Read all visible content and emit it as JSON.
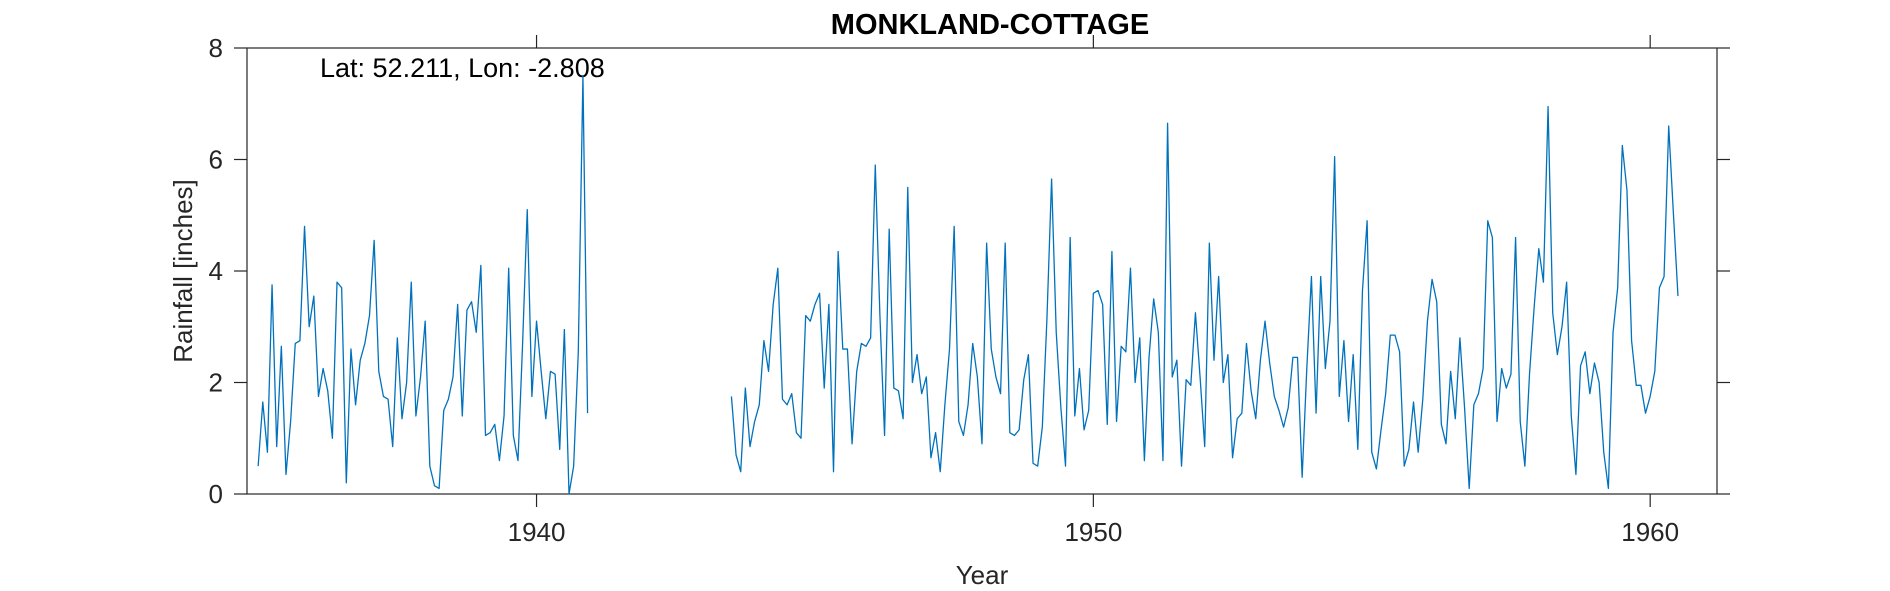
{
  "chart_data": {
    "type": "line",
    "title": "MONKLAND-COTTAGE",
    "xlabel": "Year",
    "ylabel": "Rainfall [inches]",
    "annotation": "Lat: 52.211, Lon: -2.808",
    "xlim": [
      1934.8,
      1961.2
    ],
    "ylim": [
      0,
      8
    ],
    "xticks": [
      1940,
      1950,
      1960
    ],
    "yticks": [
      0,
      2,
      4,
      6,
      8
    ],
    "grid": false,
    "series_color": "#0072BD",
    "series": [
      {
        "segments": [
          {
            "start": 1935.0,
            "step": 0.08333,
            "values": [
              0.5,
              1.65,
              0.75,
              3.75,
              0.85,
              2.65,
              0.35,
              1.3,
              2.7,
              2.75,
              4.8,
              3.0,
              3.55,
              1.75,
              2.25,
              1.85,
              1.0,
              3.8,
              3.7,
              0.2,
              2.6,
              1.6,
              2.4,
              2.7,
              3.2,
              4.55,
              2.2,
              1.75,
              1.7,
              0.85,
              2.8,
              1.35,
              2.0,
              3.8,
              1.4,
              2.1,
              3.1,
              0.5,
              0.15,
              0.1,
              1.5,
              1.7,
              2.1,
              3.4,
              1.4,
              3.3,
              3.45,
              2.9,
              4.1,
              1.05,
              1.1,
              1.25,
              0.6,
              1.4,
              4.05,
              1.05,
              0.6,
              2.7,
              5.1,
              1.75,
              3.1,
              2.2,
              1.35,
              2.2,
              2.15,
              0.8,
              2.95,
              0.0,
              0.5,
              2.55,
              7.5,
              1.45
            ]
          },
          {
            "start": 1943.5,
            "step": 0.08333,
            "values": [
              1.75,
              0.7,
              0.4,
              1.9,
              0.85,
              1.3,
              1.6,
              2.75,
              2.2,
              3.4,
              4.05,
              1.7,
              1.6,
              1.8,
              1.1,
              1.0,
              3.2,
              3.1,
              3.4,
              3.6,
              1.9,
              3.4,
              0.4,
              4.35,
              2.6,
              2.6,
              0.9,
              2.2,
              2.7,
              2.65,
              2.8,
              5.9,
              3.2,
              1.05,
              4.75,
              1.9,
              1.85,
              1.35,
              5.5,
              2.0,
              2.5,
              1.8,
              2.1,
              0.65,
              1.1,
              0.4,
              1.6,
              2.6,
              4.8,
              1.3,
              1.05,
              1.6,
              2.7,
              2.1,
              0.9,
              4.5,
              2.6,
              2.1,
              1.8,
              4.5,
              1.1,
              1.05,
              1.15,
              2.05,
              2.5,
              0.55,
              0.5,
              1.2,
              3.15,
              5.65,
              2.9,
              1.55,
              0.5,
              4.6,
              1.4,
              2.25,
              1.15,
              1.5,
              3.6,
              3.65,
              3.4,
              1.25,
              4.35,
              1.3,
              2.65,
              2.55,
              4.05,
              2.0,
              2.8,
              0.6,
              2.45,
              3.5,
              2.9,
              0.6,
              6.65,
              2.1,
              2.4,
              0.5,
              2.05,
              1.95,
              3.25,
              2.1,
              0.85,
              4.5,
              2.4,
              3.9,
              2.0,
              2.5,
              0.65,
              1.35,
              1.45,
              2.7,
              1.85,
              1.35,
              2.4,
              3.1,
              2.35,
              1.75,
              1.5,
              1.2,
              1.55,
              2.45,
              2.45,
              0.3,
              2.25,
              3.9,
              1.45,
              3.9,
              2.25,
              3.1,
              6.05,
              1.75,
              2.75,
              1.3,
              2.5,
              0.8,
              3.65,
              4.9,
              0.75,
              0.45,
              1.15,
              1.8,
              2.85,
              2.85,
              2.55,
              0.5,
              0.8,
              1.65,
              0.75,
              1.7,
              3.1,
              3.85,
              3.45,
              1.25,
              0.9,
              2.2,
              1.35,
              2.8,
              1.55,
              0.1,
              1.6,
              1.8,
              2.25,
              4.9,
              4.6,
              1.3,
              2.25,
              1.9,
              2.15,
              4.6,
              1.3,
              0.5,
              2.15,
              3.35,
              4.4,
              3.8,
              6.95,
              3.25,
              2.5,
              3.0,
              3.8,
              1.4,
              0.35,
              2.3,
              2.55,
              1.8,
              2.35,
              2.0,
              0.75,
              0.1,
              2.9,
              3.7,
              6.25,
              5.45,
              2.75,
              1.95,
              1.95,
              1.45,
              1.75,
              2.2,
              3.7,
              3.9,
              6.6,
              5.05,
              3.55
            ]
          }
        ]
      }
    ]
  }
}
